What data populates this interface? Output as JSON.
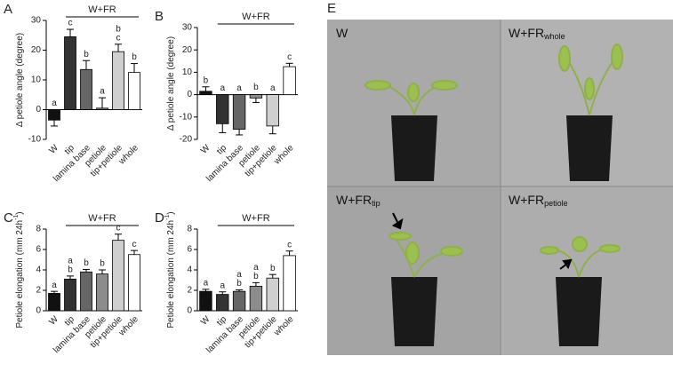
{
  "chart_data": [
    {
      "type": "bar",
      "panel": "A",
      "ylabel": "Δ petiole angle (degree)",
      "bracket_label": "W+FR",
      "categories": [
        "W",
        "tip",
        "lamina base",
        "petiole",
        "tip+petiole",
        "whole"
      ],
      "values": [
        -3.5,
        24.5,
        13.5,
        0.5,
        19.5,
        12.5
      ],
      "errors": [
        2,
        2.5,
        3,
        3.5,
        2.5,
        3
      ],
      "letters": [
        [
          "a"
        ],
        [
          "c"
        ],
        [
          "b"
        ],
        [
          "a"
        ],
        [
          "b",
          "c"
        ],
        [
          "b"
        ]
      ],
      "colors": [
        "#111111",
        "#333333",
        "#666666",
        "#8c8c8c",
        "#cfcfcf",
        "#ffffff"
      ],
      "ylim": [
        -10,
        30
      ],
      "yticks": [
        -10,
        0,
        10,
        20,
        30
      ]
    },
    {
      "type": "bar",
      "panel": "B",
      "ylabel": "Δ petiole angle (degree)",
      "bracket_label": "W+FR",
      "categories": [
        "W",
        "tip",
        "lamina base",
        "petiole",
        "tip+petiole",
        "whole"
      ],
      "values": [
        1.5,
        -13,
        -15.5,
        -1.5,
        -14,
        12.5
      ],
      "errors": [
        2,
        4,
        2.5,
        2,
        3.5,
        1.5
      ],
      "letters": [
        [
          "b"
        ],
        [
          "a"
        ],
        [
          "a"
        ],
        [
          "b"
        ],
        [
          "a"
        ],
        [
          "c"
        ]
      ],
      "colors": [
        "#111111",
        "#333333",
        "#666666",
        "#8c8c8c",
        "#cfcfcf",
        "#ffffff"
      ],
      "ylim": [
        -20,
        30
      ],
      "yticks": [
        -20,
        -10,
        0,
        10,
        20,
        30
      ]
    },
    {
      "type": "bar",
      "panel": "C",
      "ylabel": "Petiole elongation (mm 24h",
      "ylabel_sup": "-1",
      "ylabel_end": ")",
      "bracket_label": "W+FR",
      "categories": [
        "W",
        "tip",
        "lamina base",
        "petiole",
        "tip+petiole",
        "whole"
      ],
      "values": [
        1.7,
        3.1,
        3.8,
        3.6,
        6.9,
        5.5
      ],
      "errors": [
        0.2,
        0.3,
        0.25,
        0.4,
        0.6,
        0.4
      ],
      "letters": [
        [
          "a"
        ],
        [
          "a",
          "b"
        ],
        [
          "b"
        ],
        [
          "b"
        ],
        [
          "c"
        ],
        [
          "c"
        ]
      ],
      "colors": [
        "#111111",
        "#333333",
        "#666666",
        "#8c8c8c",
        "#cfcfcf",
        "#ffffff"
      ],
      "ylim": [
        0,
        8
      ],
      "yticks": [
        0,
        2,
        4,
        6,
        8
      ]
    },
    {
      "type": "bar",
      "panel": "D",
      "ylabel": "Petiole elongation (mm 24h",
      "ylabel_sup": "-1",
      "ylabel_end": ")",
      "bracket_label": "W+FR",
      "categories": [
        "W",
        "tip",
        "lamina base",
        "petiole",
        "tip+petiole",
        "whole"
      ],
      "values": [
        1.9,
        1.6,
        1.9,
        2.4,
        3.2,
        5.4
      ],
      "errors": [
        0.2,
        0.25,
        0.15,
        0.35,
        0.35,
        0.45
      ],
      "letters": [
        [
          "a"
        ],
        [
          "a"
        ],
        [
          "a",
          "b"
        ],
        [
          "a",
          "b"
        ],
        [
          "b"
        ],
        [
          "c"
        ]
      ],
      "colors": [
        "#111111",
        "#333333",
        "#666666",
        "#8c8c8c",
        "#cfcfcf",
        "#ffffff"
      ],
      "ylim": [
        0,
        8
      ],
      "yticks": [
        0,
        2,
        4,
        6,
        8
      ]
    }
  ],
  "photo_panel": {
    "panel": "E",
    "quadrants": [
      {
        "label": "W"
      },
      {
        "label": "W+FR",
        "subscript": "whole"
      },
      {
        "label": "W+FR",
        "subscript": "tip"
      },
      {
        "label": "W+FR",
        "subscript": "petiole"
      }
    ]
  }
}
